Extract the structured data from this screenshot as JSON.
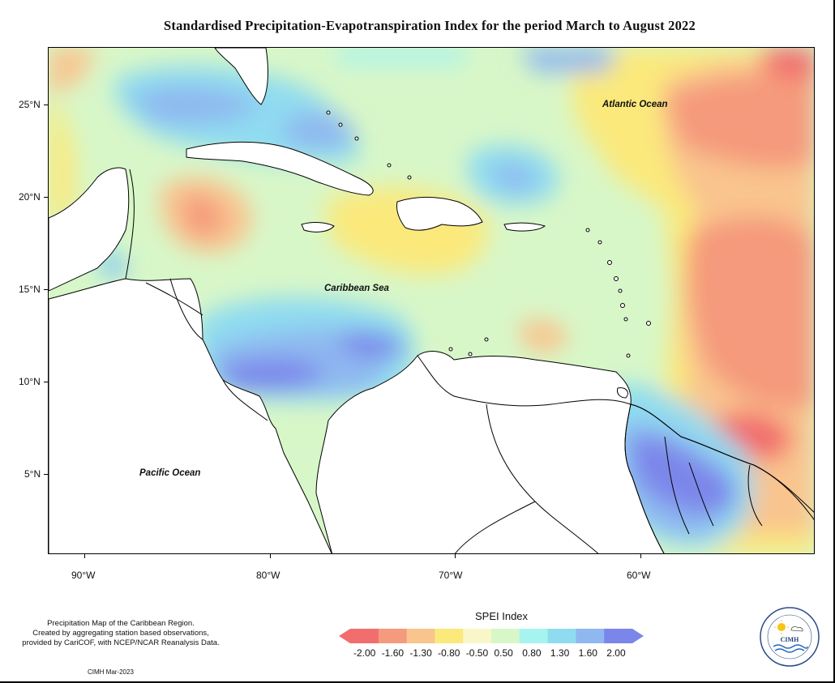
{
  "title": "Standardised Precipitation-Evapotranspiration Index for the period March to August 2022",
  "latitude_labels": [
    "25°N",
    "20°N",
    "15°N",
    "10°N",
    "5°N"
  ],
  "longitude_labels": [
    "90°W",
    "80°W",
    "70°W",
    "60°W"
  ],
  "ocean_labels": {
    "atlantic": "Atlantic Ocean",
    "caribbean": "Caribbean Sea",
    "pacific": "Pacific Ocean"
  },
  "footer_note": {
    "line1": "Precipitation Map of the Caribbean Region.",
    "line2": "Created by aggregating station based observations,",
    "line3": "provided by CariCOF, with NCEP/NCAR Reanalysis Data."
  },
  "credit": "CIMH Mar-2023",
  "legend": {
    "title": "SPEI Index",
    "labels": [
      "-2.00",
      "-1.60",
      "-1.30",
      "-0.80",
      "-0.50",
      "0.50",
      "0.80",
      "1.30",
      "1.60",
      "2.00"
    ],
    "colors": [
      "#f26d6d",
      "#f59a7c",
      "#f9c48e",
      "#fbe97c",
      "#f9f7c9",
      "#d8f7c8",
      "#a7f3f0",
      "#8fdcf0",
      "#8fb8f0",
      "#7b86ea"
    ]
  },
  "logo": {
    "name": "CIMH"
  }
}
